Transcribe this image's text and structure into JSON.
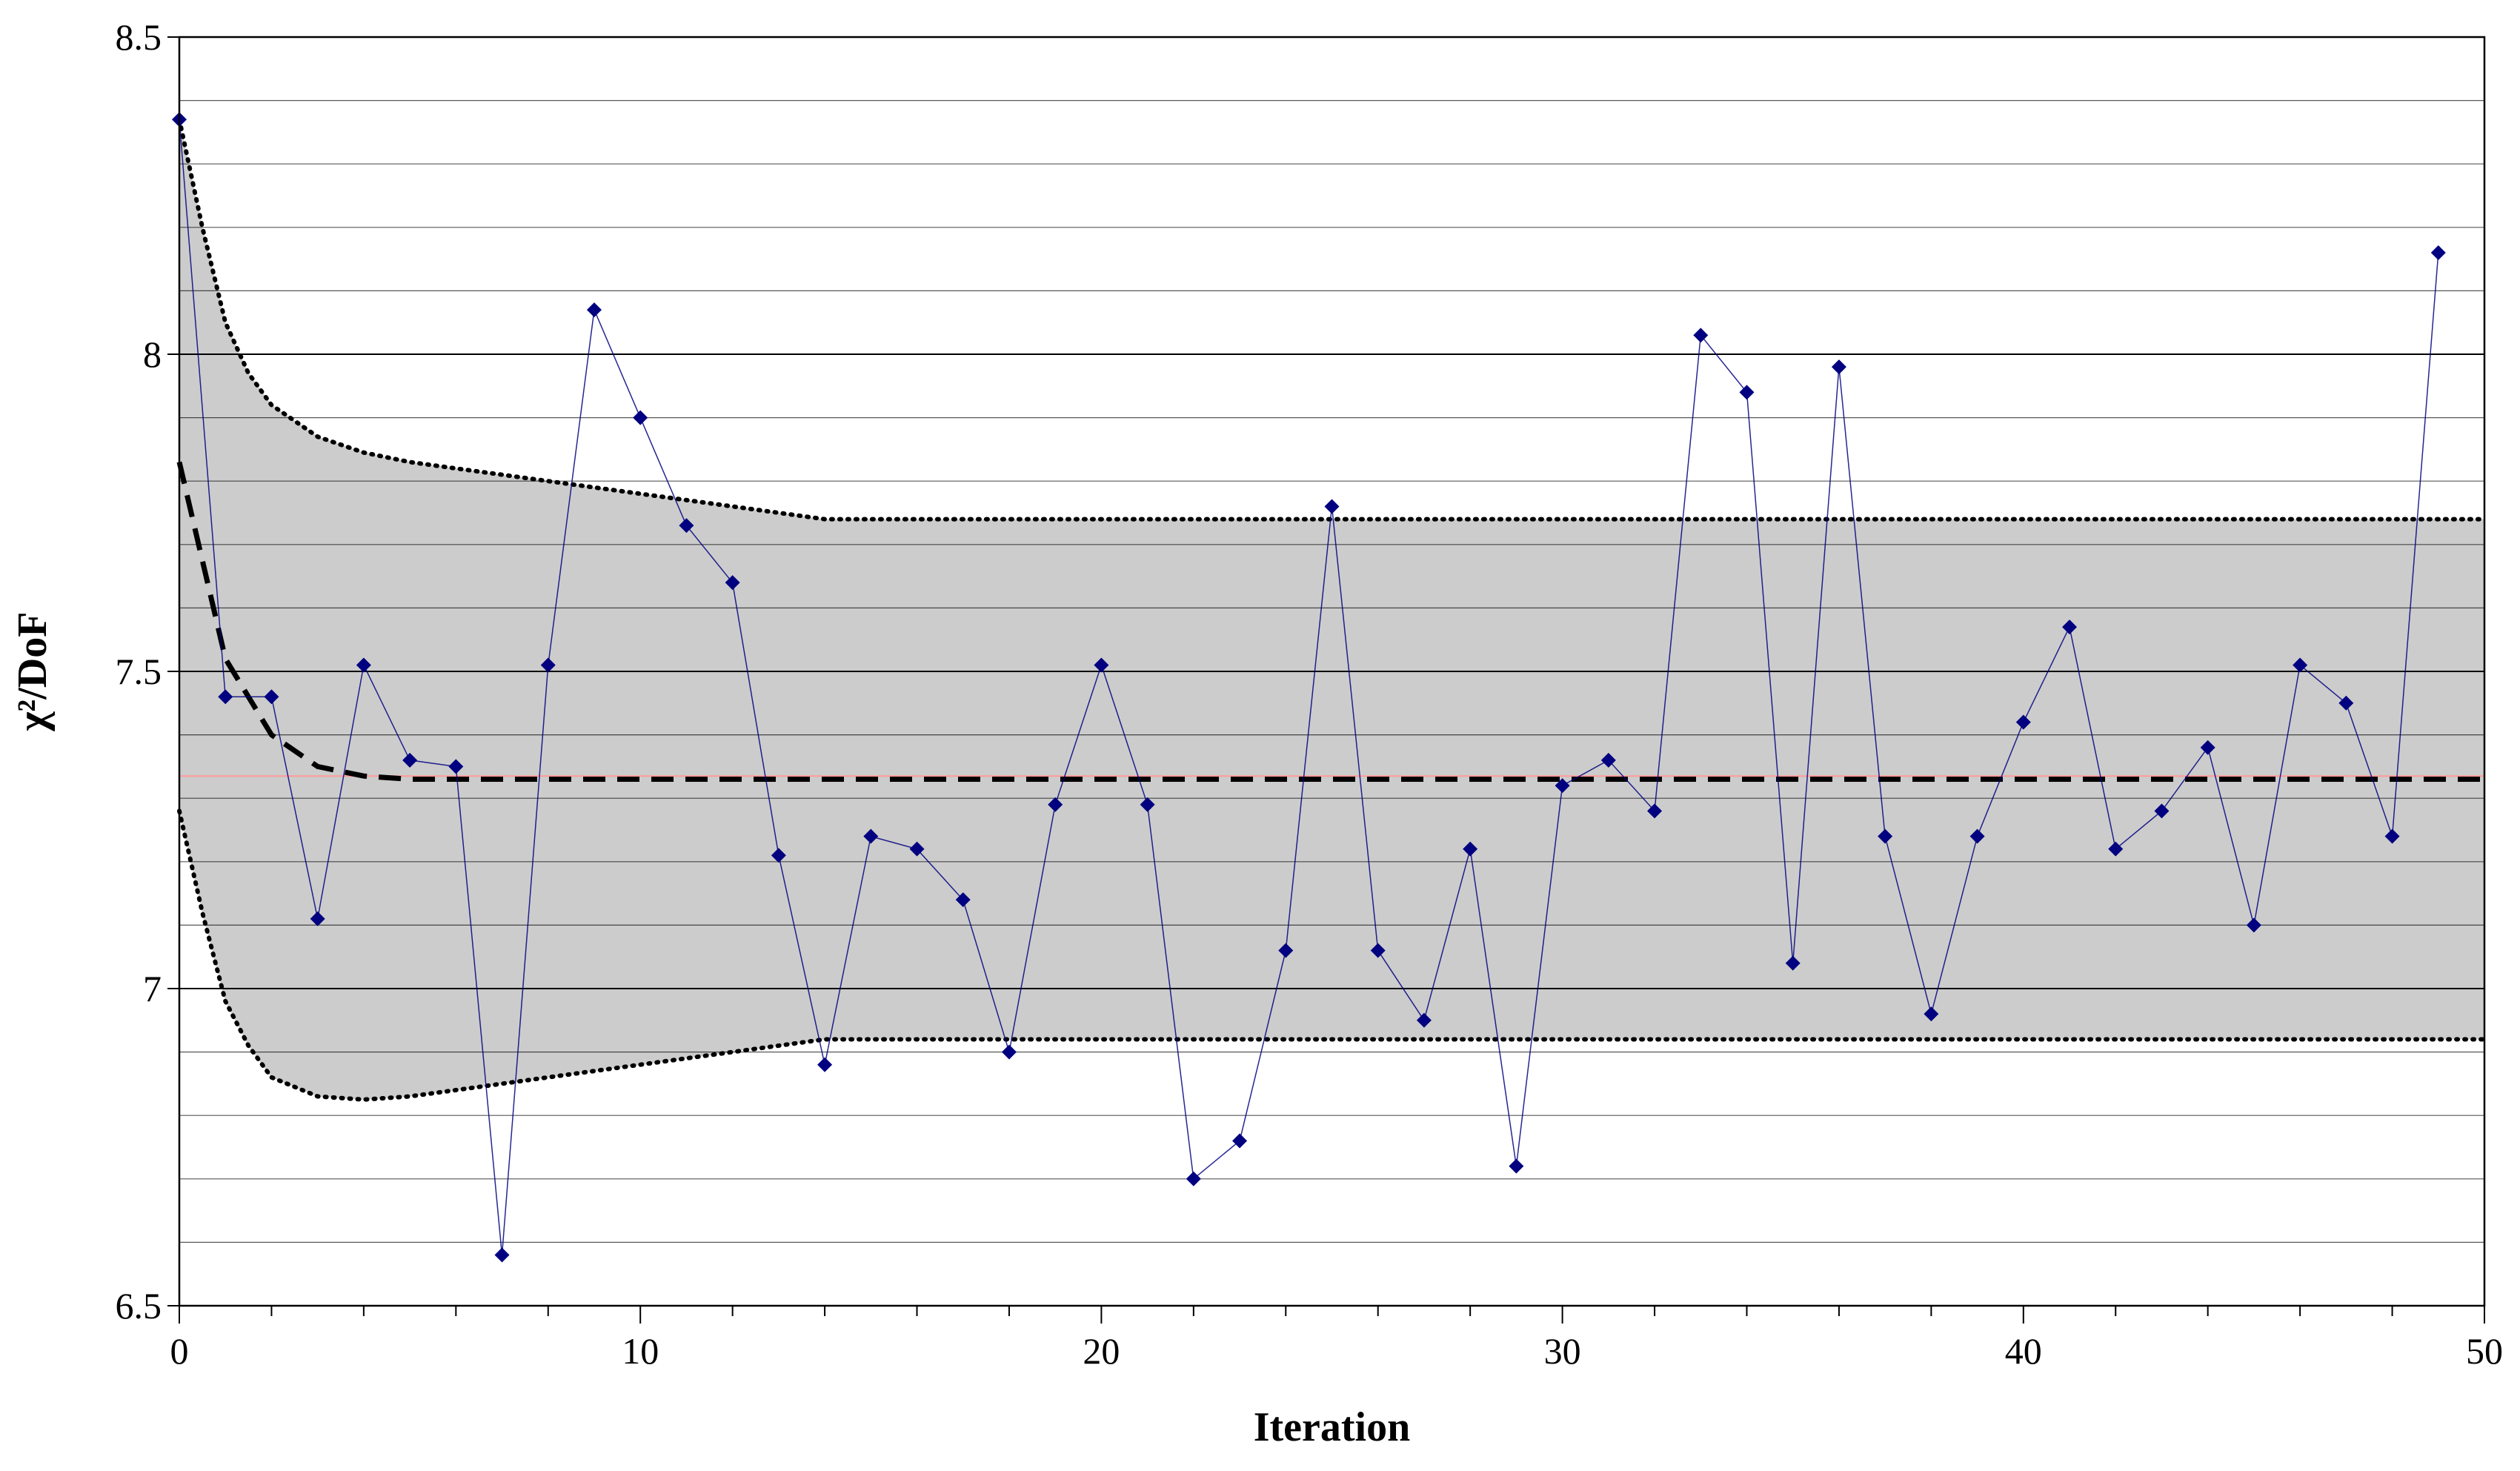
{
  "chart_data": {
    "type": "line",
    "title": "",
    "xlabel": "Iteration",
    "ylabel": "χ²/DoF",
    "xlim": [
      0,
      50
    ],
    "ylim": [
      6.5,
      8.5
    ],
    "x_ticks": [
      "0",
      "10",
      "20",
      "30",
      "40",
      "50"
    ],
    "y_ticks": [
      "6.5",
      "7",
      "7.5",
      "8",
      "8.5"
    ],
    "grid": true,
    "colors": {
      "points": "#000080",
      "band_fill": "#cccccc",
      "bounds": "#000000",
      "mean_line": "#000000",
      "reference_line": "#ff9999",
      "grid": "#000000"
    },
    "series": [
      {
        "x": [
          0,
          1,
          2,
          3,
          4,
          5,
          6,
          7,
          8,
          9,
          10,
          11,
          12,
          13,
          14,
          15,
          16,
          17,
          18,
          19,
          20,
          21,
          22,
          23,
          24,
          25,
          26,
          27,
          28,
          29,
          30,
          31,
          32,
          33,
          34,
          35,
          36,
          37,
          38,
          39,
          40,
          41,
          42,
          43,
          44,
          45,
          46,
          47,
          48,
          49
        ],
        "values": [
          8.37,
          7.46,
          7.46,
          7.11,
          7.51,
          7.36,
          7.35,
          6.58,
          7.51,
          8.07,
          7.9,
          7.73,
          7.64,
          7.21,
          6.88,
          7.24,
          7.22,
          7.14,
          6.9,
          7.29,
          7.51,
          7.29,
          6.7,
          6.76,
          7.06,
          7.76,
          7.06,
          6.95,
          7.22,
          6.72,
          7.32,
          7.36,
          7.28,
          8.03,
          7.94,
          7.04,
          7.98,
          7.24,
          6.96,
          7.24,
          7.42,
          7.57,
          7.22,
          7.28,
          7.38,
          7.1,
          7.51,
          7.45,
          7.24,
          8.16
        ]
      },
      {
        "x": [
          0,
          1,
          2,
          3,
          4,
          5,
          6,
          7,
          8,
          10,
          12,
          14,
          16,
          20,
          30,
          40,
          50
        ],
        "values": [
          7.83,
          7.52,
          7.4,
          7.35,
          7.335,
          7.33,
          7.33,
          7.33,
          7.33,
          7.33,
          7.33,
          7.33,
          7.33,
          7.33,
          7.33,
          7.33,
          7.33
        ]
      },
      {
        "x": [
          0,
          0.5,
          1,
          1.5,
          2,
          3,
          4,
          5,
          6,
          7,
          8,
          10,
          12,
          14,
          16,
          20,
          30,
          40,
          50
        ],
        "values": [
          8.37,
          8.2,
          8.05,
          7.97,
          7.92,
          7.87,
          7.845,
          7.83,
          7.82,
          7.81,
          7.8,
          7.78,
          7.76,
          7.74,
          7.74,
          7.74,
          7.74,
          7.74,
          7.74
        ]
      },
      {
        "x": [
          0,
          0.5,
          1,
          1.5,
          2,
          3,
          4,
          5,
          6,
          7,
          8,
          10,
          12,
          14,
          16,
          20,
          30,
          40,
          50
        ],
        "values": [
          7.28,
          7.12,
          6.98,
          6.91,
          6.86,
          6.83,
          6.825,
          6.83,
          6.84,
          6.85,
          6.86,
          6.88,
          6.9,
          6.92,
          6.92,
          6.92,
          6.92,
          6.92,
          6.92
        ]
      }
    ],
    "reference_y": 7.335
  }
}
